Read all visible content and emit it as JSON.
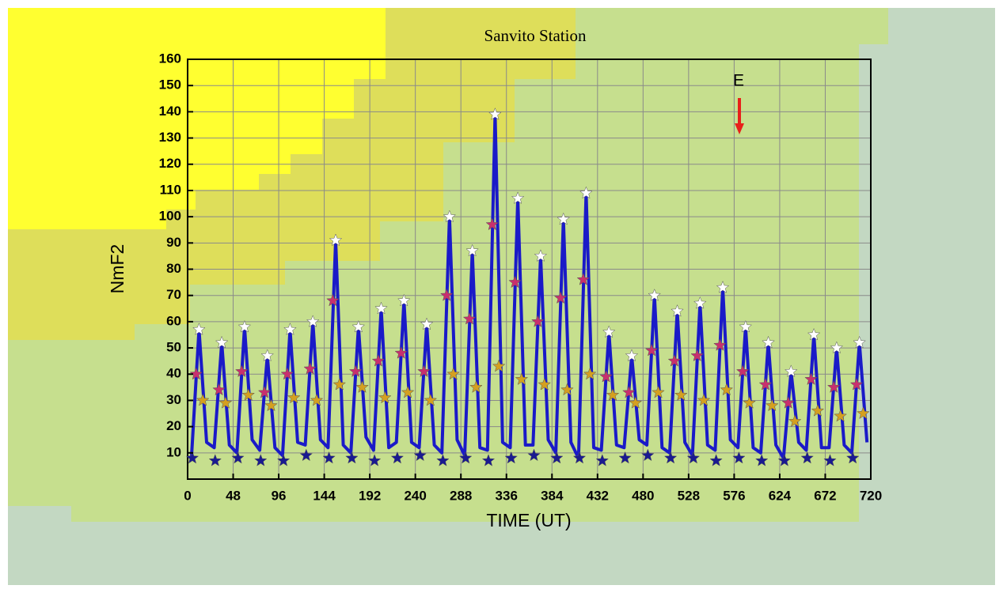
{
  "chart_data": {
    "type": "line",
    "title": "Sanvito Station",
    "x_label": "TIME (UT)",
    "y_label": "NmF2",
    "annotation": "E",
    "xlim": [
      0,
      720
    ],
    "xticks": [
      0,
      48,
      96,
      144,
      192,
      240,
      288,
      336,
      384,
      432,
      480,
      528,
      576,
      624,
      672,
      720
    ],
    "ylim": [
      0,
      160
    ],
    "yticks": [
      10,
      20,
      30,
      40,
      50,
      60,
      70,
      80,
      90,
      100,
      110,
      120,
      130,
      140,
      150,
      160
    ],
    "grid": true,
    "series": [
      {
        "marker": "line",
        "color": "#1a1ac8",
        "x": [
          4,
          12,
          20,
          28,
          36,
          44,
          52,
          60,
          68,
          76,
          84,
          92,
          100,
          108,
          116,
          124,
          132,
          140,
          148,
          156,
          164,
          172,
          180,
          188,
          196,
          204,
          212,
          220,
          228,
          236,
          244,
          252,
          260,
          268,
          276,
          284,
          292,
          300,
          308,
          316,
          324,
          332,
          340,
          348,
          356,
          364,
          372,
          380,
          388,
          396,
          404,
          412,
          420,
          428,
          436,
          444,
          452,
          460,
          468,
          476,
          484,
          492,
          500,
          508,
          516,
          524,
          532,
          540,
          548,
          556,
          564,
          572,
          580,
          588,
          596,
          604,
          612,
          620,
          628,
          636,
          644,
          652,
          660,
          668,
          676,
          684,
          692,
          700,
          708,
          716
        ],
        "values": [
          8,
          57,
          14,
          12,
          52,
          13,
          10,
          58,
          15,
          11,
          47,
          12,
          9,
          57,
          14,
          13,
          60,
          15,
          12,
          91,
          13,
          10,
          58,
          16,
          11,
          65,
          12,
          14,
          68,
          14,
          12,
          59,
          13,
          10,
          100,
          15,
          9,
          87,
          12,
          11,
          139,
          14,
          12,
          107,
          13,
          13,
          85,
          15,
          10,
          99,
          14,
          8,
          109,
          12,
          11,
          56,
          13,
          12,
          47,
          15,
          13,
          70,
          12,
          10,
          64,
          14,
          9,
          67,
          13,
          11,
          73,
          15,
          12,
          58,
          12,
          10,
          52,
          13,
          8,
          41,
          14,
          11,
          55,
          12,
          12,
          50,
          13,
          10,
          52,
          14
        ]
      },
      {
        "marker": "star",
        "color": "#ffffff",
        "x": [
          12,
          36,
          60,
          84,
          108,
          132,
          156,
          180,
          204,
          228,
          252,
          276,
          300,
          324,
          348,
          372,
          396,
          420,
          444,
          468,
          492,
          516,
          540,
          564,
          588,
          612,
          636,
          660,
          684,
          708
        ],
        "values": [
          57,
          52,
          58,
          47,
          57,
          60,
          91,
          58,
          65,
          68,
          59,
          100,
          87,
          139,
          107,
          85,
          99,
          109,
          56,
          47,
          70,
          64,
          67,
          73,
          58,
          52,
          41,
          55,
          50,
          52
        ]
      },
      {
        "marker": "star",
        "color": "#c8306e",
        "x": [
          9,
          33,
          57,
          81,
          105,
          129,
          153,
          177,
          201,
          225,
          249,
          273,
          297,
          321,
          345,
          369,
          393,
          417,
          441,
          465,
          489,
          513,
          537,
          561,
          585,
          609,
          633,
          657,
          681,
          705
        ],
        "values": [
          40,
          34,
          41,
          33,
          40,
          42,
          68,
          41,
          45,
          48,
          41,
          70,
          61,
          97,
          75,
          60,
          69,
          76,
          39,
          33,
          49,
          45,
          47,
          51,
          41,
          36,
          29,
          38,
          35,
          36
        ]
      },
      {
        "marker": "star",
        "color": "#d4a020",
        "x": [
          16,
          40,
          64,
          88,
          112,
          136,
          160,
          184,
          208,
          232,
          256,
          280,
          304,
          328,
          352,
          376,
          400,
          424,
          448,
          472,
          496,
          520,
          544,
          568,
          592,
          616,
          640,
          664,
          688,
          712
        ],
        "values": [
          30,
          29,
          32,
          28,
          31,
          30,
          36,
          35,
          31,
          33,
          30,
          40,
          35,
          43,
          38,
          36,
          34,
          40,
          32,
          29,
          33,
          32,
          30,
          34,
          29,
          28,
          22,
          26,
          24,
          25
        ]
      },
      {
        "marker": "star",
        "color": "#1a1a90",
        "x": [
          5,
          29,
          53,
          77,
          101,
          125,
          149,
          173,
          197,
          221,
          245,
          269,
          293,
          317,
          341,
          365,
          389,
          413,
          437,
          461,
          485,
          509,
          533,
          557,
          581,
          605,
          629,
          653,
          677,
          701
        ],
        "values": [
          8,
          7,
          8,
          7,
          7,
          9,
          8,
          8,
          7,
          8,
          9,
          7,
          8,
          7,
          8,
          9,
          8,
          8,
          7,
          8,
          9,
          8,
          8,
          7,
          8,
          7,
          7,
          8,
          7,
          8
        ]
      }
    ]
  }
}
